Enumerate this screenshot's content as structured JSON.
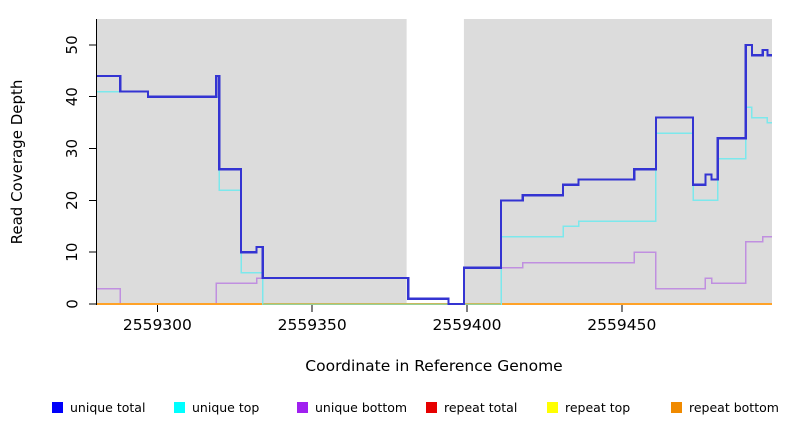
{
  "figure": {
    "background": "#FFFFFF",
    "plot_background": "#DCDCDC",
    "axis_color": "#000000",
    "text_color": "#000000"
  },
  "chart_data": {
    "type": "line",
    "subtype": "step",
    "title": "",
    "xlabel": "Coordinate in Reference Genome",
    "ylabel": "Read Coverage Depth",
    "xlim": [
      2559280.5,
      2559498.5
    ],
    "ylim": [
      0,
      55
    ],
    "x_ticks": [
      2559300,
      2559350,
      2559400,
      2559450
    ],
    "y_ticks": [
      0,
      10,
      20,
      30,
      40,
      50
    ],
    "grid": "off",
    "legend_position": "bottom",
    "gap_region": {
      "start": 2559380.5,
      "end": 2559399,
      "fill": "#FFFFFF"
    },
    "series": [
      {
        "name": "unique total",
        "line_color": "#3434D2",
        "legend_color": "#0000FA",
        "line_width": 2.2,
        "points": [
          [
            2559280.5,
            44
          ],
          [
            2559288,
            41
          ],
          [
            2559297,
            40
          ],
          [
            2559319,
            44
          ],
          [
            2559320,
            26
          ],
          [
            2559327,
            10
          ],
          [
            2559332,
            11
          ],
          [
            2559334,
            5
          ],
          [
            2559381,
            1
          ],
          [
            2559394,
            0
          ],
          [
            2559399,
            7
          ],
          [
            2559411,
            20
          ],
          [
            2559418,
            21
          ],
          [
            2559431,
            23
          ],
          [
            2559436,
            24
          ],
          [
            2559454,
            26
          ],
          [
            2559461,
            36
          ],
          [
            2559473,
            23
          ],
          [
            2559477,
            25
          ],
          [
            2559479,
            24
          ],
          [
            2559481,
            32
          ],
          [
            2559490,
            50
          ],
          [
            2559492,
            48
          ],
          [
            2559495.5,
            49
          ],
          [
            2559497,
            48
          ]
        ]
      },
      {
        "name": "unique top",
        "line_color": "#7CE8EC",
        "legend_color": "#00FFFF",
        "line_width": 1.5,
        "points": [
          [
            2559280.5,
            41
          ],
          [
            2559297,
            40
          ],
          [
            2559320,
            22
          ],
          [
            2559327,
            6
          ],
          [
            2559334,
            0
          ],
          [
            2559411,
            13
          ],
          [
            2559431,
            15
          ],
          [
            2559436,
            16
          ],
          [
            2559461,
            33
          ],
          [
            2559473,
            20
          ],
          [
            2559481,
            28
          ],
          [
            2559490,
            38
          ],
          [
            2559492,
            36
          ],
          [
            2559497,
            35
          ]
        ]
      },
      {
        "name": "unique bottom",
        "line_color": "#C08FE0",
        "legend_color": "#A020F0",
        "line_width": 1.5,
        "points": [
          [
            2559280.5,
            3
          ],
          [
            2559288,
            0
          ],
          [
            2559319,
            4
          ],
          [
            2559332,
            5
          ],
          [
            2559381,
            1
          ],
          [
            2559394,
            0
          ],
          [
            2559399,
            7
          ],
          [
            2559418,
            8
          ],
          [
            2559454,
            10
          ],
          [
            2559461,
            3
          ],
          [
            2559477,
            5
          ],
          [
            2559479,
            4
          ],
          [
            2559490,
            12
          ],
          [
            2559495.5,
            13
          ]
        ]
      },
      {
        "name": "repeat total",
        "line_color": "#E60000",
        "legend_color": "#E60000",
        "line_width": 1.4,
        "points": [
          [
            2559280.5,
            0
          ]
        ]
      },
      {
        "name": "repeat top",
        "line_color": "#FFFF00",
        "legend_color": "#FFFF00",
        "line_width": 1.4,
        "points": [
          [
            2559280.5,
            0
          ]
        ]
      },
      {
        "name": "repeat bottom",
        "line_color": "#FFA228",
        "legend_color": "#F08A00",
        "line_width": 2,
        "points": [
          [
            2559280.5,
            0
          ]
        ]
      }
    ],
    "overlap_segment": {
      "note": "unique top and repeat top coincide at depth 0; rendered light green",
      "color": "#96D096",
      "line_width": 1.5,
      "points": [
        [
          2559334,
          0
        ],
        [
          2559411,
          0
        ]
      ]
    }
  },
  "legend": {
    "items": [
      {
        "label": "unique total",
        "color": "#0000FA"
      },
      {
        "label": "unique top",
        "color": "#00FFFF"
      },
      {
        "label": "unique bottom",
        "color": "#A020F0"
      },
      {
        "label": "repeat total",
        "color": "#E60000"
      },
      {
        "label": "repeat top",
        "color": "#FFFF00"
      },
      {
        "label": "repeat bottom",
        "color": "#F08A00"
      }
    ]
  }
}
